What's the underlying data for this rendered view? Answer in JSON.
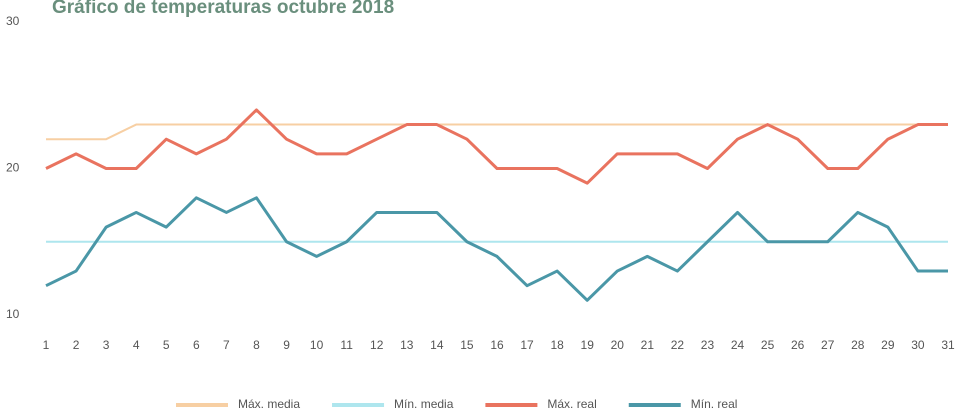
{
  "chart_data": {
    "type": "line",
    "title": "Gráfico de temperaturas octubre 2018",
    "categories": [
      1,
      2,
      3,
      4,
      5,
      6,
      7,
      8,
      9,
      10,
      11,
      12,
      13,
      14,
      15,
      16,
      17,
      18,
      19,
      20,
      21,
      22,
      23,
      24,
      25,
      26,
      27,
      28,
      29,
      30,
      31
    ],
    "ylim": [
      10,
      30
    ],
    "yticks": [
      10,
      20,
      30
    ],
    "grid": false,
    "legend": "bottom",
    "series": [
      {
        "name": "Máx. media",
        "color": "#f7cfa3",
        "values": [
          22,
          22,
          22,
          23,
          23,
          23,
          23,
          23,
          23,
          23,
          23,
          23,
          23,
          23,
          23,
          23,
          23,
          23,
          23,
          23,
          23,
          23,
          23,
          23,
          23,
          23,
          23,
          23,
          23,
          23,
          23
        ]
      },
      {
        "name": "Mín. media",
        "color": "#aee6ee",
        "values": [
          15,
          15,
          15,
          15,
          15,
          15,
          15,
          15,
          15,
          15,
          15,
          15,
          15,
          15,
          15,
          15,
          15,
          15,
          15,
          15,
          15,
          15,
          15,
          15,
          15,
          15,
          15,
          15,
          15,
          15,
          15
        ]
      },
      {
        "name": "Máx. real",
        "color": "#e9735f",
        "values": [
          20,
          21,
          20,
          20,
          22,
          21,
          22,
          24,
          22,
          21,
          21,
          22,
          23,
          23,
          22,
          20,
          20,
          20,
          19,
          21,
          21,
          21,
          20,
          22,
          23,
          22,
          20,
          20,
          22,
          23,
          23
        ]
      },
      {
        "name": "Mín. real",
        "color": "#4a97a7",
        "values": [
          12,
          13,
          16,
          17,
          16,
          18,
          17,
          18,
          15,
          14,
          15,
          17,
          17,
          17,
          15,
          14,
          12,
          13,
          11,
          13,
          14,
          13,
          15,
          17,
          15,
          15,
          15,
          17,
          16,
          13,
          13
        ]
      }
    ]
  }
}
